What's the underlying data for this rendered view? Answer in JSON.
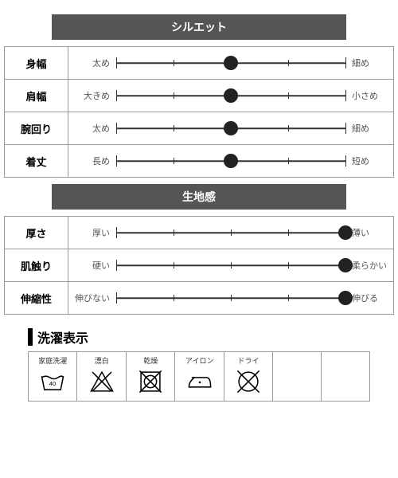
{
  "sections": [
    {
      "title": "シルエット",
      "rows": [
        {
          "label": "身幅",
          "left": "太め",
          "right": "細め",
          "value": 50
        },
        {
          "label": "肩幅",
          "left": "大きめ",
          "right": "小さめ",
          "value": 50
        },
        {
          "label": "腕回り",
          "left": "太め",
          "right": "細め",
          "value": 50
        },
        {
          "label": "着丈",
          "left": "長め",
          "right": "短め",
          "value": 50
        }
      ]
    },
    {
      "title": "生地感",
      "rows": [
        {
          "label": "厚さ",
          "left": "厚い",
          "right": "薄い",
          "value": 100
        },
        {
          "label": "肌触り",
          "left": "硬い",
          "right": "柔らかい",
          "value": 100
        },
        {
          "label": "伸縮性",
          "left": "伸びない",
          "right": "伸びる",
          "value": 100
        }
      ]
    }
  ],
  "slider": {
    "ticks": [
      0,
      25,
      50,
      75,
      100
    ],
    "endTicks": [
      0,
      100
    ],
    "trackColor": "#333333",
    "dotColor": "#222222",
    "dotSize": 18
  },
  "care": {
    "title": "洗濯表示",
    "items": [
      {
        "label": "家庭洗濯",
        "icon": "wash40"
      },
      {
        "label": "漂白",
        "icon": "bleach-no"
      },
      {
        "label": "乾燥",
        "icon": "tumble-no"
      },
      {
        "label": "アイロン",
        "icon": "iron"
      },
      {
        "label": "ドライ",
        "icon": "dry-no"
      }
    ],
    "blankCells": 2
  },
  "colors": {
    "headerBg": "#555555",
    "headerText": "#ffffff",
    "border": "#999999",
    "text": "#333333"
  }
}
